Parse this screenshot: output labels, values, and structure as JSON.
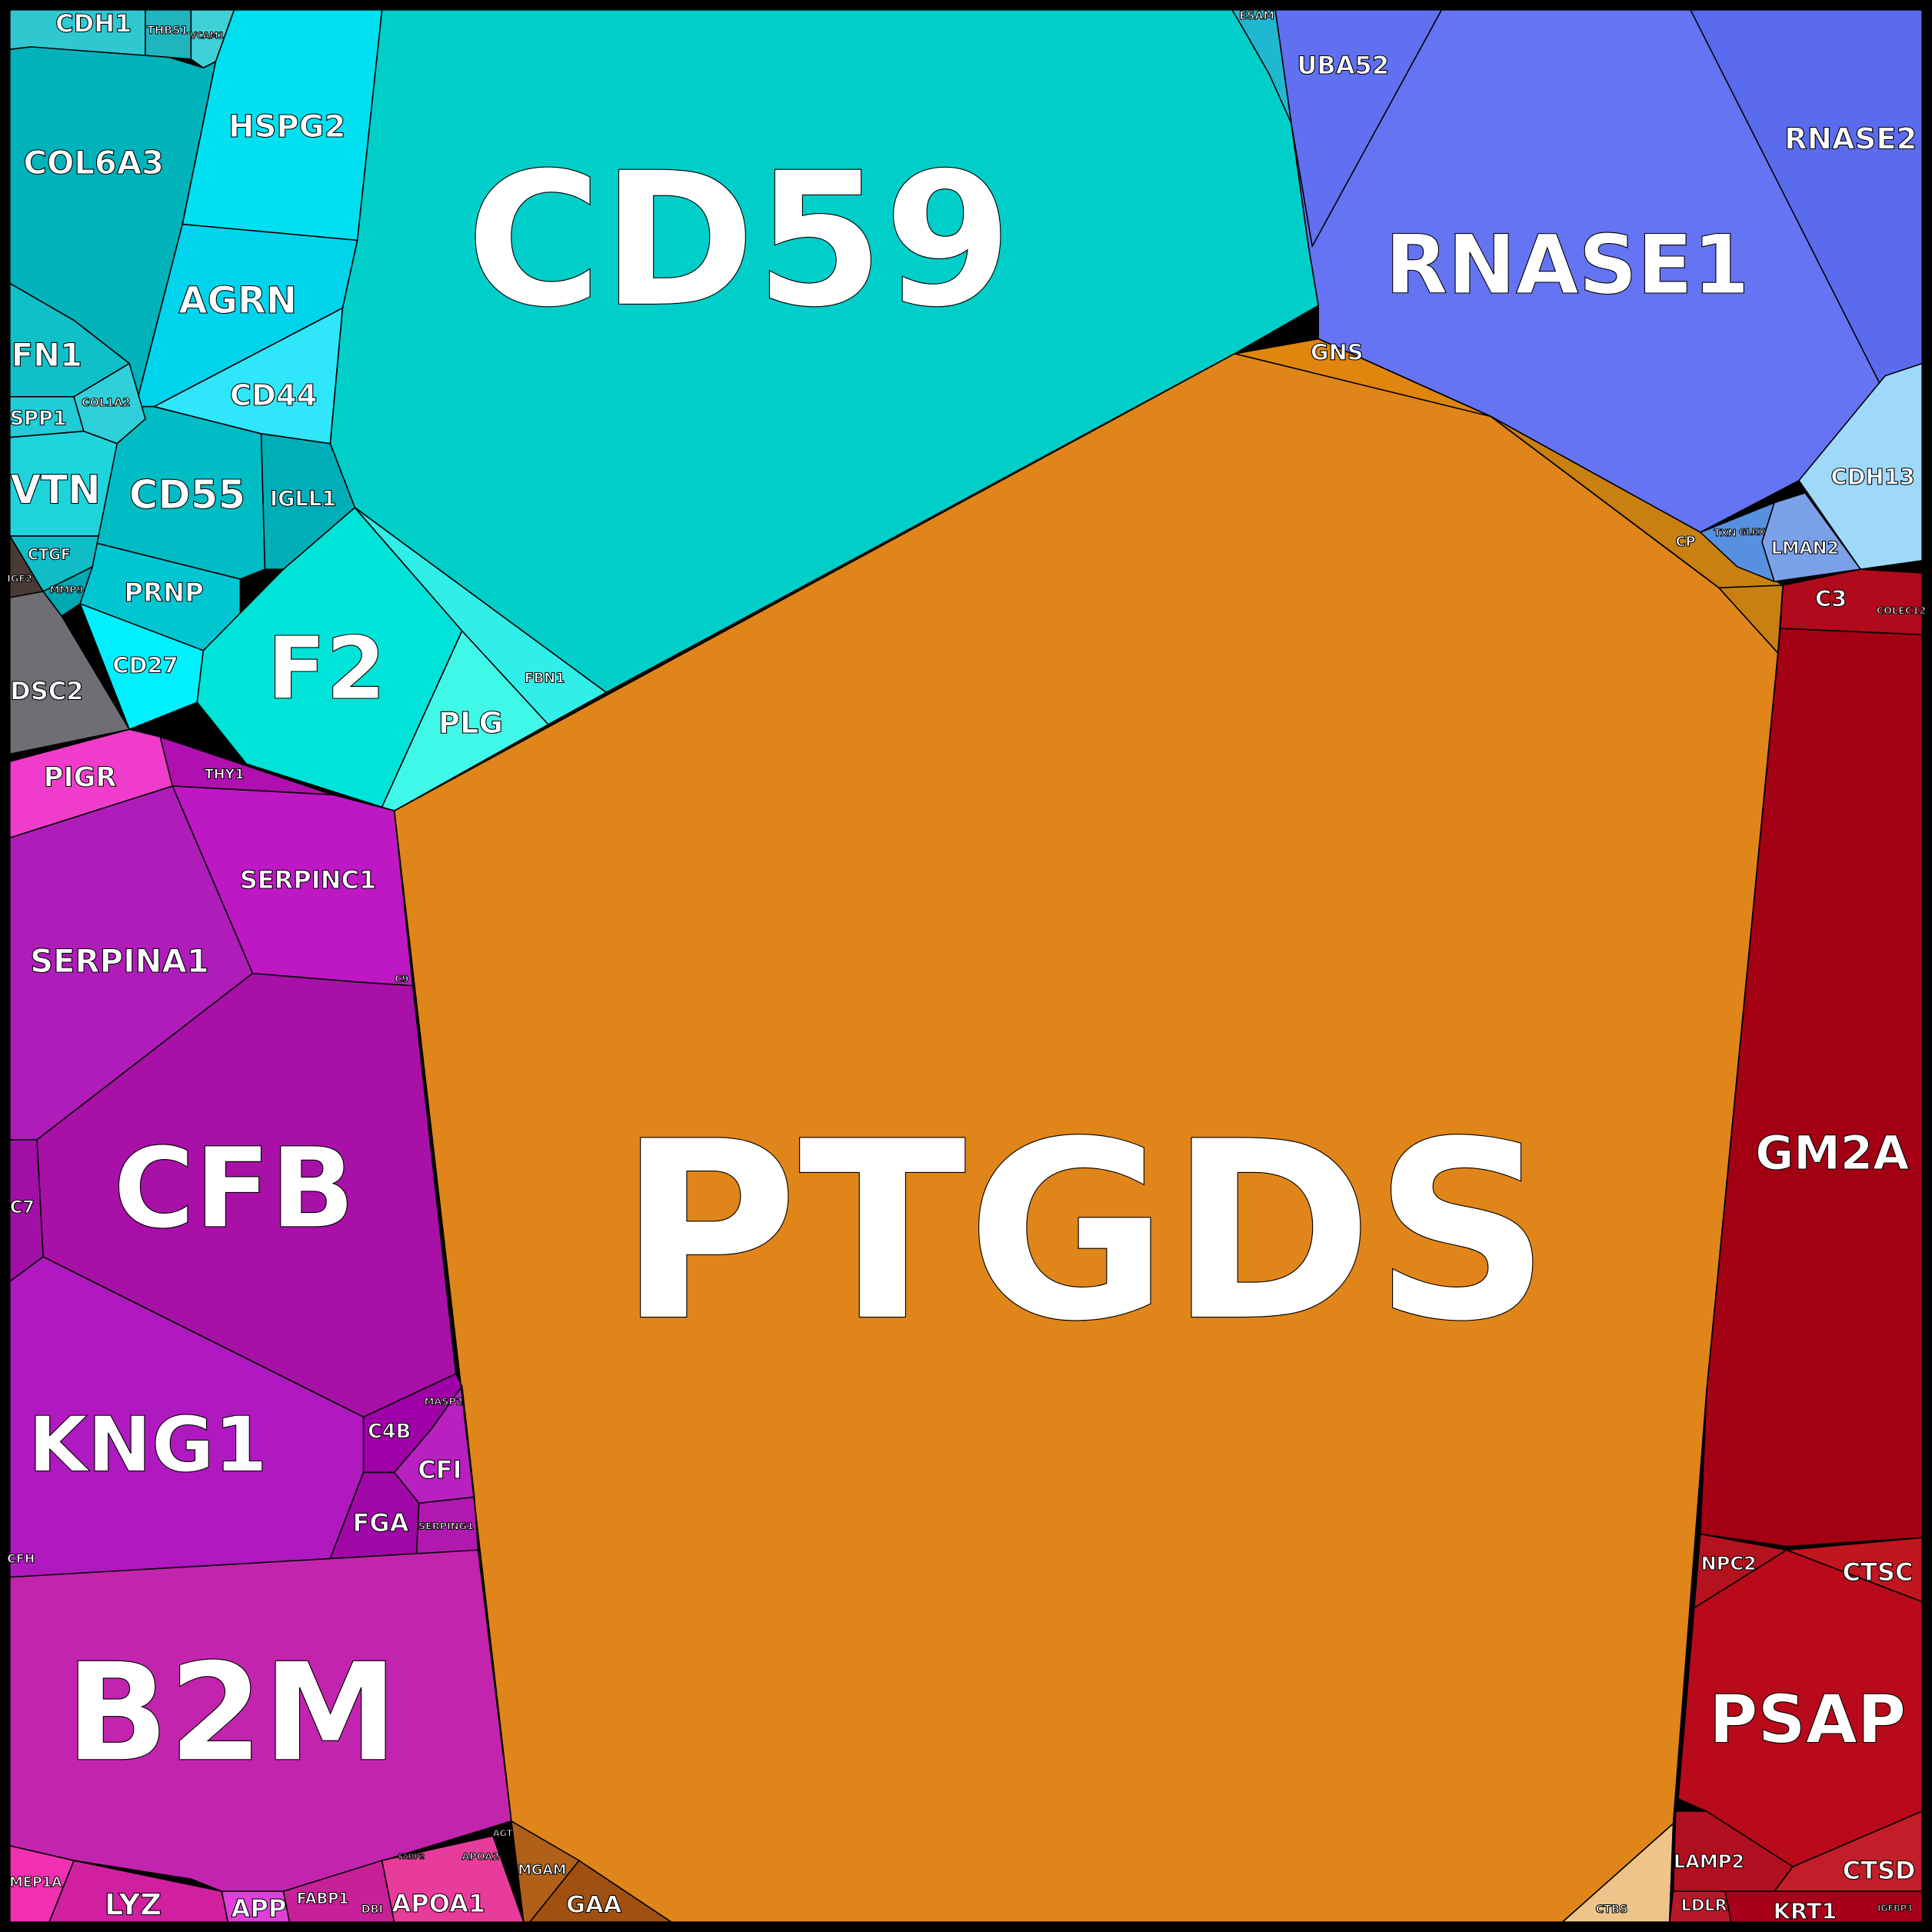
{
  "cells": [
    {
      "label": "CD59"
    },
    {
      "label": "PTGDS"
    },
    {
      "label": "RNASE1"
    },
    {
      "label": "RNASE2"
    },
    {
      "label": "UBA52"
    },
    {
      "label": "ESAM"
    },
    {
      "label": "GNS"
    },
    {
      "label": "CP"
    },
    {
      "label": "CDH13"
    },
    {
      "label": "LMAN2"
    },
    {
      "label": "TXN"
    },
    {
      "label": "GLRX"
    },
    {
      "label": "C3"
    },
    {
      "label": "COLEC12"
    },
    {
      "label": "GM2A"
    },
    {
      "label": "NPC2"
    },
    {
      "label": "CTSC"
    },
    {
      "label": "PSAP"
    },
    {
      "label": "LAMP2"
    },
    {
      "label": "CTSD"
    },
    {
      "label": "KRT1"
    },
    {
      "label": "LDLR"
    },
    {
      "label": "IGFBP3"
    },
    {
      "label": "CTBS"
    },
    {
      "label": "HSPG2"
    },
    {
      "label": "AGRN"
    },
    {
      "label": "CD44"
    },
    {
      "label": "CD55"
    },
    {
      "label": "IGLL1"
    },
    {
      "label": "PRNP"
    },
    {
      "label": "CD27"
    },
    {
      "label": "F2"
    },
    {
      "label": "PLG"
    },
    {
      "label": "FBN1"
    },
    {
      "label": "COL6A3"
    },
    {
      "label": "CDH1"
    },
    {
      "label": "THBS1"
    },
    {
      "label": "VCAM1"
    },
    {
      "label": "FN1"
    },
    {
      "label": "SPP1"
    },
    {
      "label": "COL1A2"
    },
    {
      "label": "VTN"
    },
    {
      "label": "CTGF"
    },
    {
      "label": "MMP9"
    },
    {
      "label": "IGF2"
    },
    {
      "label": "DSC2"
    },
    {
      "label": "PIGR"
    },
    {
      "label": "THY1"
    },
    {
      "label": "SERPINC1"
    },
    {
      "label": "C9"
    },
    {
      "label": "SERPINA1"
    },
    {
      "label": "CFB"
    },
    {
      "label": "C7"
    },
    {
      "label": "KNG1"
    },
    {
      "label": "C4B"
    },
    {
      "label": "MASP2"
    },
    {
      "label": "CFI"
    },
    {
      "label": "FGA"
    },
    {
      "label": "SERPING1"
    },
    {
      "label": "CFH"
    },
    {
      "label": "B2M"
    },
    {
      "label": "MEP1A"
    },
    {
      "label": "LYZ"
    },
    {
      "label": "APP"
    },
    {
      "label": "FABP1"
    },
    {
      "label": "DBI"
    },
    {
      "label": "APOA1"
    },
    {
      "label": "APOA2"
    },
    {
      "label": "FABP2"
    },
    {
      "label": "AGT"
    },
    {
      "label": "MGAM"
    },
    {
      "label": "GAA"
    }
  ]
}
